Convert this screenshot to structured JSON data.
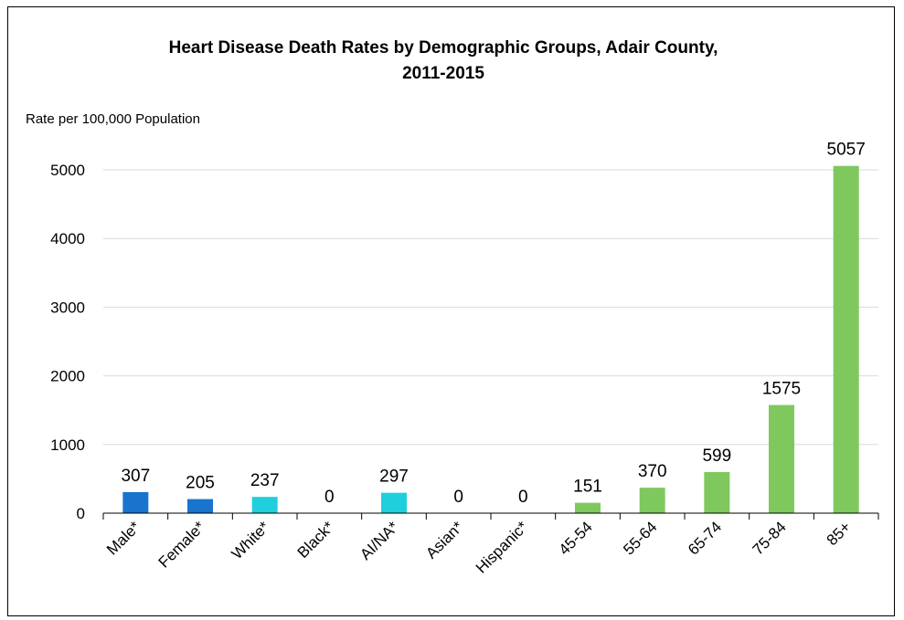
{
  "chart_data": {
    "type": "bar",
    "title": "Heart Disease Death Rates by Demographic Groups, Adair County,",
    "title_line2": "2011-2015",
    "ylabel": "Rate per 100,000 Population",
    "categories": [
      "Male*",
      "Female*",
      "White*",
      "Black*",
      "AI/NA*",
      "Asian*",
      "Hispanic*",
      "45-54",
      "55-64",
      "65-74",
      "75-84",
      "85+"
    ],
    "values": [
      307,
      205,
      237,
      0,
      297,
      0,
      0,
      151,
      370,
      599,
      1575,
      5057
    ],
    "data_labels": [
      "307",
      "205",
      "237",
      "0",
      "297",
      "0",
      "0",
      "151",
      "370",
      "599",
      "1575",
      "5057"
    ],
    "colors": [
      "#1874cd",
      "#1874cd",
      "#1fcfdc",
      "#1fcfdc",
      "#1fcfdc",
      "#1fcfdc",
      "#1fcfdc",
      "#7ec85e",
      "#7ec85e",
      "#7ec85e",
      "#7ec85e",
      "#7ec85e"
    ],
    "yticks": [
      0,
      1000,
      2000,
      3000,
      4000,
      5000
    ],
    "ylim": [
      0,
      5000
    ],
    "grid": true,
    "legend": "none"
  }
}
